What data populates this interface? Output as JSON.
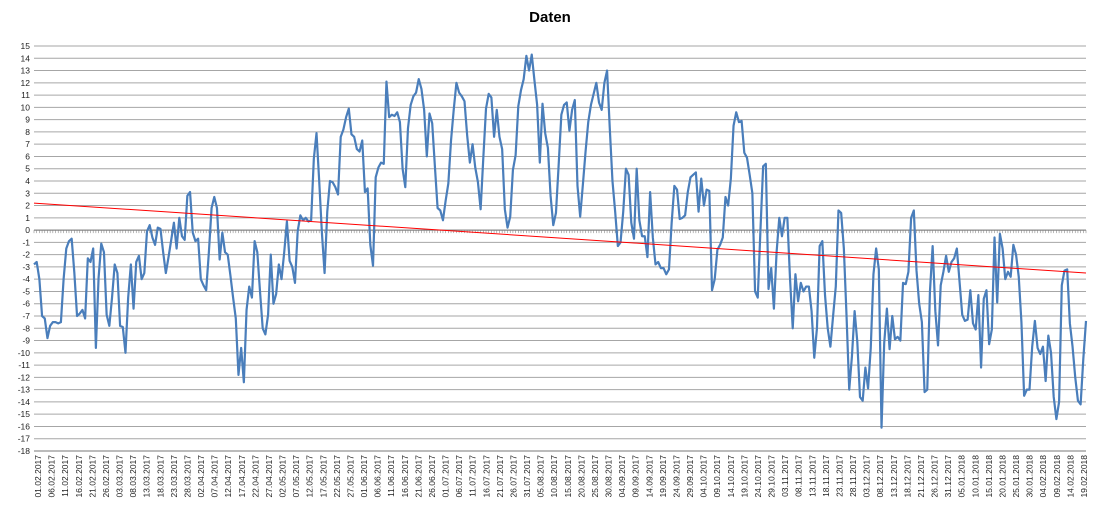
{
  "chart_data": {
    "type": "line",
    "title": "Daten",
    "ylim": [
      -18,
      15
    ],
    "yticks": [
      15,
      14,
      13,
      12,
      11,
      10,
      9,
      8,
      7,
      6,
      5,
      4,
      3,
      2,
      1,
      0,
      -1,
      -2,
      -3,
      -4,
      -5,
      -6,
      -7,
      -8,
      -9,
      -10,
      -11,
      -12,
      -13,
      -14,
      -15,
      -16,
      -17,
      -18
    ],
    "grid": true,
    "x_tick_labels": [
      "01.02.2017",
      "06.02.2017",
      "11.02.2017",
      "16.02.2017",
      "21.02.2017",
      "26.02.2017",
      "03.03.2017",
      "08.03.2017",
      "13.03.2017",
      "18.03.2017",
      "23.03.2017",
      "28.03.2017",
      "02.04.2017",
      "07.04.2017",
      "12.04.2017",
      "17.04.2017",
      "22.04.2017",
      "27.04.2017",
      "02.05.2017",
      "07.05.2017",
      "12.05.2017",
      "17.05.2017",
      "22.05.2017",
      "27.05.2017",
      "01.06.2017",
      "06.06.2017",
      "11.06.2017",
      "16.06.2017",
      "21.06.2017",
      "26.06.2017",
      "01.07.2017",
      "06.07.2017",
      "11.07.2017",
      "16.07.2017",
      "21.07.2017",
      "26.07.2017",
      "31.07.2017",
      "05.08.2017",
      "10.08.2017",
      "15.08.2017",
      "20.08.2017",
      "25.08.2017",
      "30.08.2017",
      "04.09.2017",
      "09.09.2017",
      "14.09.2017",
      "19.09.2017",
      "24.09.2017",
      "29.09.2017",
      "04.10.2017",
      "09.10.2017",
      "14.10.2017",
      "19.10.2017",
      "24.10.2017",
      "29.10.2017",
      "03.11.2017",
      "08.11.2017",
      "13.11.2017",
      "18.11.2017",
      "23.11.2017",
      "28.11.2017",
      "03.12.2017",
      "08.12.2017",
      "13.12.2017",
      "18.12.2017",
      "21.12.2017",
      "26.12.2017",
      "31.12.2017",
      "05.01.2018",
      "10.01.2018",
      "15.01.2018",
      "20.01.2018",
      "25.01.2018",
      "30.01.2018",
      "04.02.2018",
      "09.02.2018",
      "14.02.2018",
      "19.02.2018"
    ],
    "series": [
      {
        "color": "#4a7ebb",
        "values": [
          -2.8,
          -2.6,
          -4,
          -7,
          -7.2,
          -8.8,
          -7.8,
          -7.5,
          -7.5,
          -7.6,
          -7.5,
          -4,
          -1.5,
          -0.9,
          -0.7,
          -3.5,
          -7,
          -6.8,
          -6.5,
          -7.2,
          -2.3,
          -2.6,
          -1.5,
          -9.6,
          -3.9,
          -1.1,
          -1.8,
          -6.9,
          -7.8,
          -5.5,
          -2.8,
          -3.5,
          -7.8,
          -7.9,
          -10,
          -5.5,
          -2.8,
          -6.4,
          -2.6,
          -2.1,
          -4,
          -3.5,
          -0.1,
          0.4,
          -0.6,
          -1.2,
          0.2,
          0.1,
          -1.8,
          -3.5,
          -2.2,
          -0.8,
          0.6,
          -1.5,
          1,
          -0.5,
          -0.8,
          2.8,
          3.1,
          -0.2,
          -0.9,
          -0.7,
          -4,
          -4.5,
          -4.9,
          -1.8,
          1.8,
          2.7,
          1.8,
          -2.4,
          -0.2,
          -1.8,
          -2,
          -3.7,
          -5.5,
          -7.2,
          -11.8,
          -9.6,
          -12.4,
          -6.5,
          -4.6,
          -5.5,
          -0.9,
          -1.8,
          -5,
          -8,
          -8.5,
          -6.9,
          -2,
          -6,
          -5.2,
          -2.8,
          -4,
          -1.8,
          0.7,
          -2.5,
          -3,
          -4.3,
          -0.1,
          1.2,
          0.8,
          1,
          0.7,
          0.8,
          5.8,
          7.9,
          4,
          -0.2,
          -3.5,
          1.5,
          4,
          3.9,
          3.5,
          2.9,
          7.6,
          8.2,
          9.2,
          9.9,
          7.8,
          7.6,
          6.6,
          6.4,
          7.3,
          3.1,
          3.4,
          -1.2,
          -2.9,
          4.3,
          5.1,
          5.5,
          5.4,
          12.1,
          9.2,
          9.4,
          9.3,
          9.6,
          8.8,
          5,
          3.5,
          8.3,
          10.2,
          10.9,
          11.2,
          12.3,
          11.5,
          9.8,
          6,
          9.5,
          8.7,
          5.2,
          1.8,
          1.6,
          0.8,
          2.4,
          3.8,
          7.3,
          9.8,
          12,
          11.2,
          10.9,
          10.5,
          7.7,
          5.5,
          7,
          5.1,
          3.9,
          1.7,
          5.9,
          9.9,
          11.1,
          10.8,
          7.6,
          9.8,
          7.6,
          6.6,
          1.7,
          0.2,
          1.1,
          4.9,
          6.1,
          10.1,
          11.4,
          12.3,
          14.2,
          13,
          14.3,
          12.2,
          10.2,
          5.5,
          10.3,
          7.9,
          6.7,
          2.8,
          0.4,
          1.4,
          5.3,
          9.4,
          10.2,
          10.4,
          8.1,
          9.8,
          10.6,
          3.6,
          1.1,
          3.7,
          6.4,
          8.8,
          10.2,
          11.1,
          12,
          10.4,
          9.8,
          12,
          13,
          8.3,
          4,
          1.5,
          -1.3,
          -1,
          1.5,
          5,
          4.5,
          0.6,
          -0.7,
          5,
          0.8,
          -0.5,
          -0.5,
          -2.2,
          3.1,
          -0.6,
          -2.8,
          -2.6,
          -3.1,
          -3.1,
          -3.6,
          -3.2,
          0.6,
          3.6,
          3.3,
          0.9,
          1,
          1.2,
          3.1,
          4.3,
          4.5,
          4.7,
          1.5,
          4.2,
          2,
          3.3,
          3.2,
          -4.9,
          -4,
          -1.6,
          -1.2,
          -0.6,
          2.7,
          2,
          4.2,
          8.5,
          9.6,
          8.8,
          8.9,
          6.3,
          5.9,
          4.5,
          3,
          -5,
          -5.5,
          0,
          5.2,
          5.4,
          -4.8,
          -3.1,
          -6.4,
          -1.8,
          1,
          -0.5,
          1,
          1,
          -4,
          -8,
          -3.6,
          -5.8,
          -4.3,
          -5,
          -4.6,
          -4.6,
          -6.6,
          -10.4,
          -8,
          -1.3,
          -0.9,
          -5.3,
          -8,
          -9.5,
          -7,
          -4.6,
          1.6,
          1.4,
          -1.5,
          -7,
          -13,
          -10.3,
          -6.6,
          -9.1,
          -13.6,
          -13.9,
          -11.2,
          -12.9,
          -9.6,
          -3.6,
          -1.5,
          -3.2,
          -16.1,
          -9.2,
          -6.4,
          -9.7,
          -7,
          -8.9,
          -8.7,
          -9,
          -4.3,
          -4.4,
          -3.4,
          1,
          1.6,
          -3.3,
          -6,
          -7.5,
          -13.2,
          -13,
          -5,
          -1.3,
          -6.6,
          -9.4,
          -4.5,
          -3.4,
          -2.1,
          -3.4,
          -2.6,
          -2.3,
          -1.5,
          -4.2,
          -6.9,
          -7.4,
          -7.3,
          -4.9,
          -7.6,
          -8.1,
          -5.3,
          -11.2,
          -5.6,
          -4.9,
          -9.3,
          -8.1,
          -0.6,
          -5.9,
          -0.3,
          -1.5,
          -4,
          -3.4,
          -3.8,
          -1.2,
          -2,
          -3.8,
          -7.5,
          -13.5,
          -13,
          -13,
          -9.5,
          -7.4,
          -9.6,
          -10.1,
          -9.5,
          -12.3,
          -8.6,
          -10,
          -13.6,
          -15.4,
          -14,
          -4.5,
          -3.3,
          -3.2,
          -7.6,
          -9.5,
          -12,
          -13.9,
          -14.2,
          -10.5,
          -7.4
        ]
      },
      {
        "color": "#ff0000",
        "trendline": true,
        "values_endpoints": [
          2.2,
          -3.5
        ]
      }
    ]
  }
}
